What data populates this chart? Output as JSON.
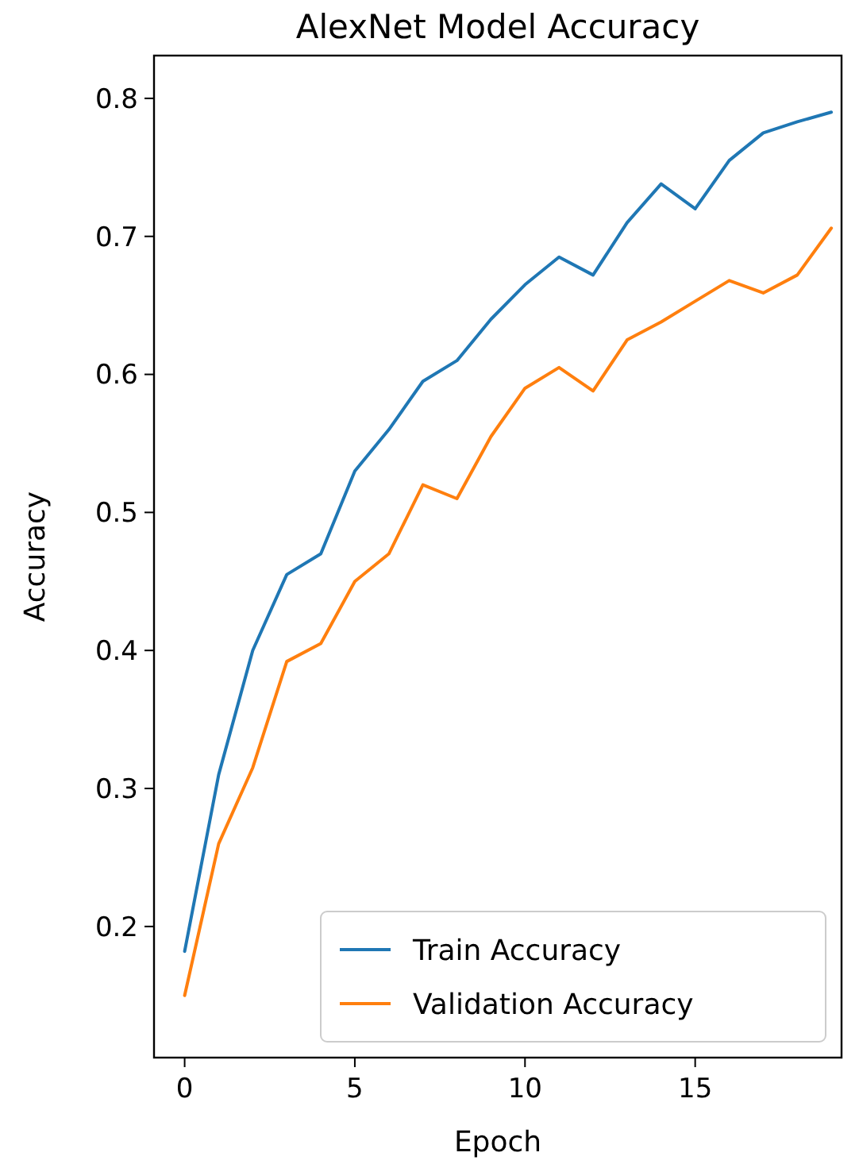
{
  "chart_data": {
    "type": "line",
    "title": "AlexNet Model Accuracy",
    "xlabel": "Epoch",
    "ylabel": "Accuracy",
    "x": [
      0,
      1,
      2,
      3,
      4,
      5,
      6,
      7,
      8,
      9,
      10,
      11,
      12,
      13,
      14,
      15,
      16,
      17,
      18,
      19
    ],
    "series": [
      {
        "name": "Train Accuracy",
        "color": "#1f77b4",
        "values": [
          0.182,
          0.31,
          0.4,
          0.455,
          0.47,
          0.53,
          0.56,
          0.595,
          0.61,
          0.64,
          0.665,
          0.685,
          0.672,
          0.71,
          0.738,
          0.72,
          0.755,
          0.775,
          0.783,
          0.79
        ]
      },
      {
        "name": "Validation Accuracy",
        "color": "#ff7f0e",
        "values": [
          0.15,
          0.26,
          0.315,
          0.392,
          0.405,
          0.45,
          0.47,
          0.52,
          0.51,
          0.555,
          0.59,
          0.605,
          0.588,
          0.625,
          0.638,
          0.653,
          0.668,
          0.659,
          0.672,
          0.706
        ]
      }
    ],
    "xlim": [
      -0.9,
      19.3
    ],
    "ylim": [
      0.105,
      0.831
    ],
    "xticks": [
      0,
      5,
      10,
      15
    ],
    "yticks": [
      0.2,
      0.3,
      0.4,
      0.5,
      0.6,
      0.7,
      0.8
    ],
    "grid": false,
    "legend": "bottom right",
    "marker": "none",
    "line_style": "solid"
  }
}
